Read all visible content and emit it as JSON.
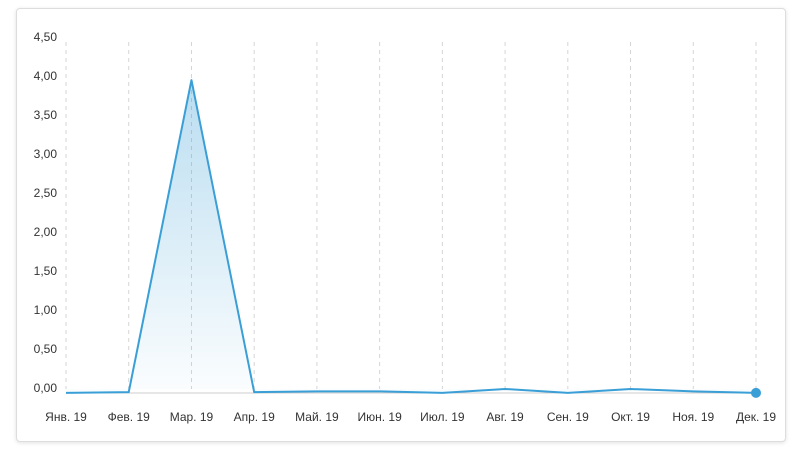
{
  "chart_data": {
    "type": "area",
    "categories": [
      "Янв. 19",
      "Фев. 19",
      "Мар. 19",
      "Апр. 19",
      "Май. 19",
      "Июн. 19",
      "Июл. 19",
      "Авг. 19",
      "Сен. 19",
      "Окт. 19",
      "Ноя. 19",
      "Дек. 19"
    ],
    "values": [
      -0.05,
      -0.04,
      3.96,
      -0.04,
      -0.03,
      -0.03,
      -0.05,
      0.0,
      -0.05,
      0.0,
      -0.03,
      -0.05
    ],
    "color": "#3a9fd6",
    "ylim": [
      -0.08,
      4.5
    ],
    "yticks": [
      {
        "value": 0,
        "label": "0,00"
      },
      {
        "value": 0.5,
        "label": "0,50"
      },
      {
        "value": 1,
        "label": "1,00"
      },
      {
        "value": 1.5,
        "label": "1,50"
      },
      {
        "value": 2,
        "label": "2,00"
      },
      {
        "value": 2.5,
        "label": "2,50"
      },
      {
        "value": 3,
        "label": "3,00"
      },
      {
        "value": 3.5,
        "label": "3,50"
      },
      {
        "value": 4,
        "label": "4,00"
      },
      {
        "value": 4.5,
        "label": "4,50"
      }
    ],
    "grid": true
  }
}
